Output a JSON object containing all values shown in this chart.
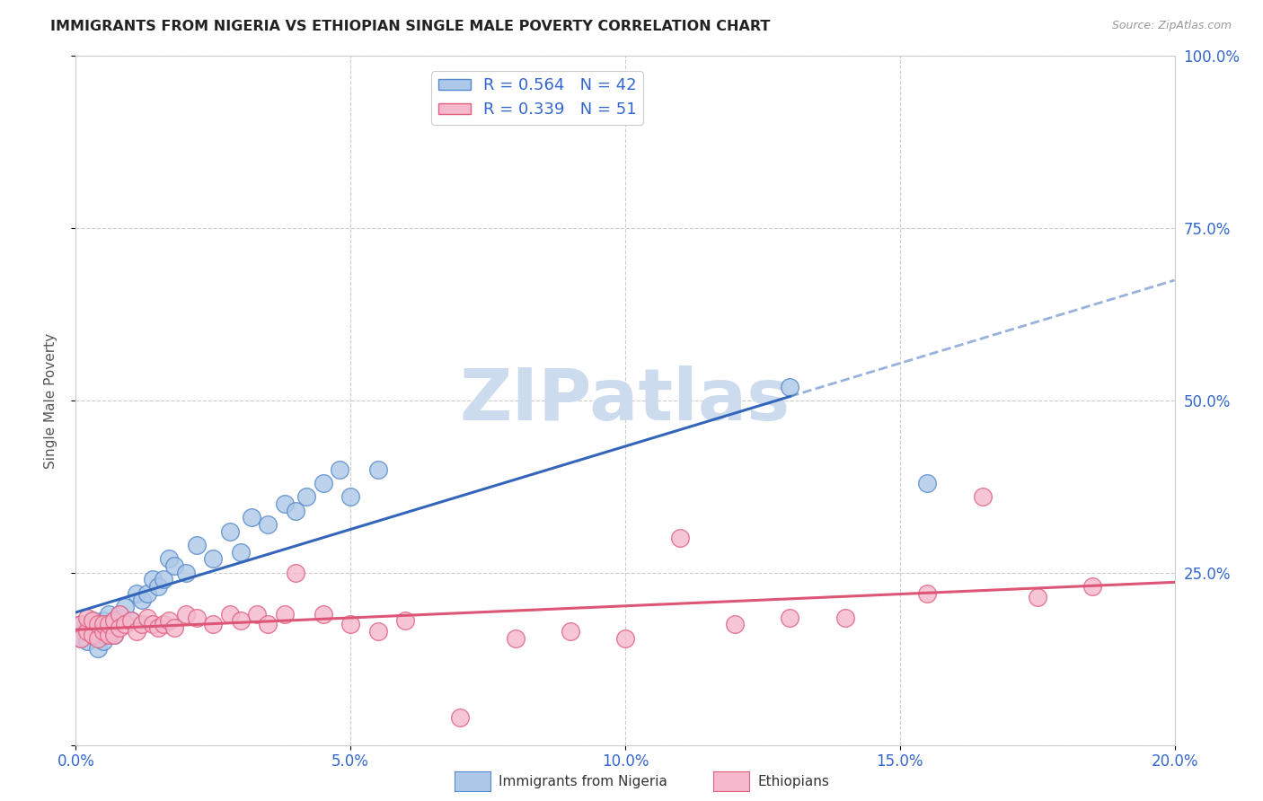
{
  "title": "IMMIGRANTS FROM NIGERIA VS ETHIOPIAN SINGLE MALE POVERTY CORRELATION CHART",
  "source": "Source: ZipAtlas.com",
  "ylabel": "Single Male Poverty",
  "nigeria_color": "#adc8e8",
  "nigeria_edge": "#5588cc",
  "ethiopia_color": "#f5b8cc",
  "ethiopia_edge": "#e06080",
  "nigeria_line_color": "#3366bb",
  "ethiopia_line_color": "#dd5577",
  "nigeria_R": 0.564,
  "nigeria_N": 42,
  "ethiopia_R": 0.339,
  "ethiopia_N": 51,
  "nigeria_x": [
    0.001,
    0.001,
    0.002,
    0.002,
    0.003,
    0.003,
    0.004,
    0.004,
    0.005,
    0.005,
    0.005,
    0.006,
    0.006,
    0.007,
    0.007,
    0.008,
    0.009,
    0.01,
    0.011,
    0.012,
    0.013,
    0.014,
    0.015,
    0.016,
    0.017,
    0.018,
    0.02,
    0.022,
    0.025,
    0.028,
    0.03,
    0.032,
    0.035,
    0.038,
    0.04,
    0.042,
    0.045,
    0.048,
    0.05,
    0.055,
    0.13,
    0.155
  ],
  "nigeria_y": [
    0.155,
    0.175,
    0.15,
    0.17,
    0.16,
    0.18,
    0.14,
    0.17,
    0.15,
    0.18,
    0.16,
    0.17,
    0.19,
    0.18,
    0.16,
    0.19,
    0.2,
    0.18,
    0.22,
    0.21,
    0.22,
    0.24,
    0.23,
    0.24,
    0.27,
    0.26,
    0.25,
    0.29,
    0.27,
    0.31,
    0.28,
    0.33,
    0.32,
    0.35,
    0.34,
    0.36,
    0.38,
    0.4,
    0.36,
    0.4,
    0.52,
    0.38
  ],
  "ethiopia_x": [
    0.001,
    0.001,
    0.002,
    0.002,
    0.003,
    0.003,
    0.004,
    0.004,
    0.005,
    0.005,
    0.006,
    0.006,
    0.007,
    0.007,
    0.008,
    0.008,
    0.009,
    0.01,
    0.011,
    0.012,
    0.013,
    0.014,
    0.015,
    0.016,
    0.017,
    0.018,
    0.02,
    0.022,
    0.025,
    0.028,
    0.03,
    0.033,
    0.035,
    0.038,
    0.04,
    0.045,
    0.05,
    0.055,
    0.06,
    0.07,
    0.08,
    0.09,
    0.1,
    0.11,
    0.12,
    0.13,
    0.14,
    0.155,
    0.165,
    0.175,
    0.185
  ],
  "ethiopia_y": [
    0.175,
    0.155,
    0.165,
    0.185,
    0.16,
    0.18,
    0.155,
    0.175,
    0.165,
    0.175,
    0.16,
    0.175,
    0.16,
    0.18,
    0.19,
    0.17,
    0.175,
    0.18,
    0.165,
    0.175,
    0.185,
    0.175,
    0.17,
    0.175,
    0.18,
    0.17,
    0.19,
    0.185,
    0.175,
    0.19,
    0.18,
    0.19,
    0.175,
    0.19,
    0.25,
    0.19,
    0.175,
    0.165,
    0.18,
    0.04,
    0.155,
    0.165,
    0.155,
    0.3,
    0.175,
    0.185,
    0.185,
    0.22,
    0.36,
    0.215,
    0.23
  ],
  "xmin": 0.0,
  "xmax": 0.2,
  "ymin": 0.0,
  "ymax": 1.0,
  "background_color": "#ffffff",
  "grid_color": "#cccccc",
  "title_color": "#222222",
  "legend_text_color": "#3366cc",
  "watermark_text": "ZIPatlas",
  "watermark_color": "#ccdcee",
  "xtick_positions": [
    0.0,
    0.05,
    0.1,
    0.15,
    0.2
  ],
  "xtick_labels": [
    "0.0%",
    "5.0%",
    "10.0%",
    "15.0%",
    "20.0%"
  ],
  "ytick_positions": [
    0.0,
    0.25,
    0.5,
    0.75,
    1.0
  ],
  "ytick_labels": [
    "",
    "25.0%",
    "50.0%",
    "75.0%",
    "100.0%"
  ]
}
